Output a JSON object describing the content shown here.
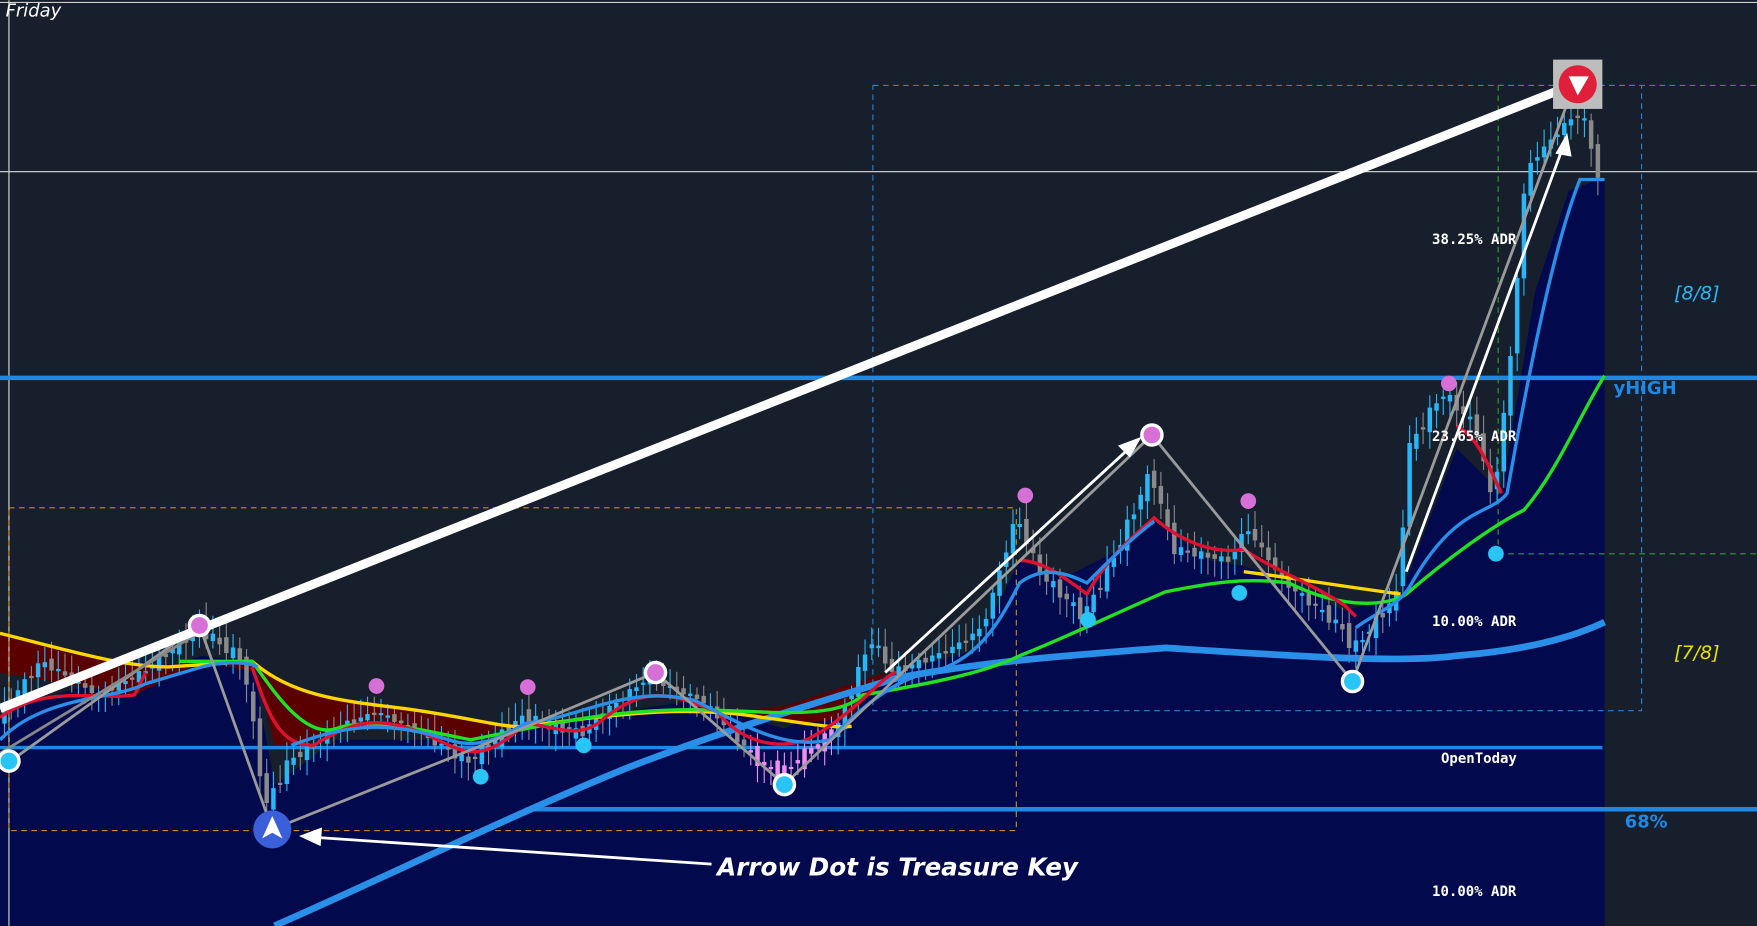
{
  "day_label": "Friday",
  "adr_labels": [
    "38.25% ADR",
    "23.65% ADR",
    "10.00% ADR",
    "10.00% ADR"
  ],
  "murrey_labels": [
    "[8/8]",
    "[7/8]"
  ],
  "level_labels": {
    "yhigh": "yHIGH",
    "open_today": "OpenToday",
    "percent": "68%"
  },
  "annotation": "Arrow Dot is Treasure Key"
}
